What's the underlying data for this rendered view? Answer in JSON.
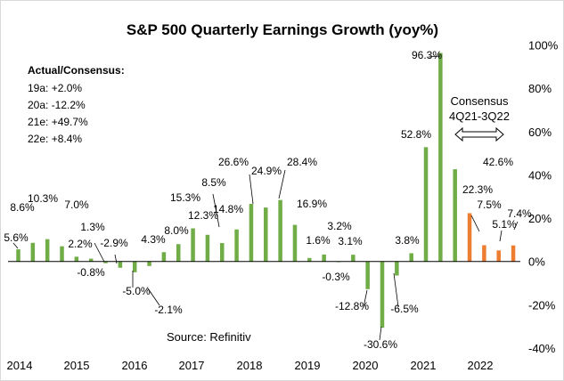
{
  "chart_data": {
    "type": "bar",
    "title": "S&P 500 Quarterly Earnings Growth (yoy%)",
    "xlabel": "",
    "ylabel": "",
    "ylim": [
      -40,
      100
    ],
    "y_ticks": [
      "100%",
      "80%",
      "60%",
      "40%",
      "20%",
      "0%",
      "-20%",
      "-40%"
    ],
    "year_labels": [
      "2014",
      "2015",
      "2016",
      "2017",
      "2018",
      "2019",
      "2020",
      "2021",
      "2022"
    ],
    "series": [
      {
        "values": [
          5.6,
          8.6,
          10.3,
          7.0,
          2.2,
          1.3,
          -0.8,
          -2.9,
          -5.0,
          -2.1,
          4.3,
          8.0,
          15.3,
          12.3,
          8.5,
          14.8,
          26.6,
          24.9,
          28.4,
          16.9,
          1.6,
          3.2,
          -0.3,
          3.1,
          -12.8,
          -30.6,
          -6.5,
          3.8,
          52.8,
          96.3,
          42.6,
          22.3,
          7.5,
          5.1,
          7.4
        ],
        "labels": [
          "5.6%",
          "8.6%",
          "10.3%",
          "7.0%",
          "2.2%",
          "1.3%",
          "-0.8%",
          "-2.9%",
          "-5.0%",
          "-2.1%",
          "4.3%",
          "8.0%",
          "15.3%",
          "12.3%",
          "8.5%",
          "14.8%",
          "26.6%",
          "24.9%",
          "28.4%",
          "16.9%",
          "1.6%",
          "3.2%",
          "-0.3%",
          "3.1%",
          "-12.8%",
          "-30.6%",
          "-6.5%",
          "3.8%",
          "52.8%",
          "96.3%",
          "42.6%",
          "22.3%",
          "7.5%",
          "5.1%",
          "7.4%"
        ],
        "estimate_from_index": 31
      }
    ],
    "colors": {
      "actual": "#70ad47",
      "consensus": "#ed7d31"
    },
    "grid": false
  },
  "annotations": {
    "header": "Actual/Consensus:",
    "rows": [
      "19a:  +2.0%",
      "20a:  -12.2%",
      "21e:  +49.7%",
      "22e:  +8.4%"
    ],
    "source": "Source:   Refinitiv",
    "consensus_line1": "Consensus",
    "consensus_line2": "4Q21-3Q22"
  }
}
